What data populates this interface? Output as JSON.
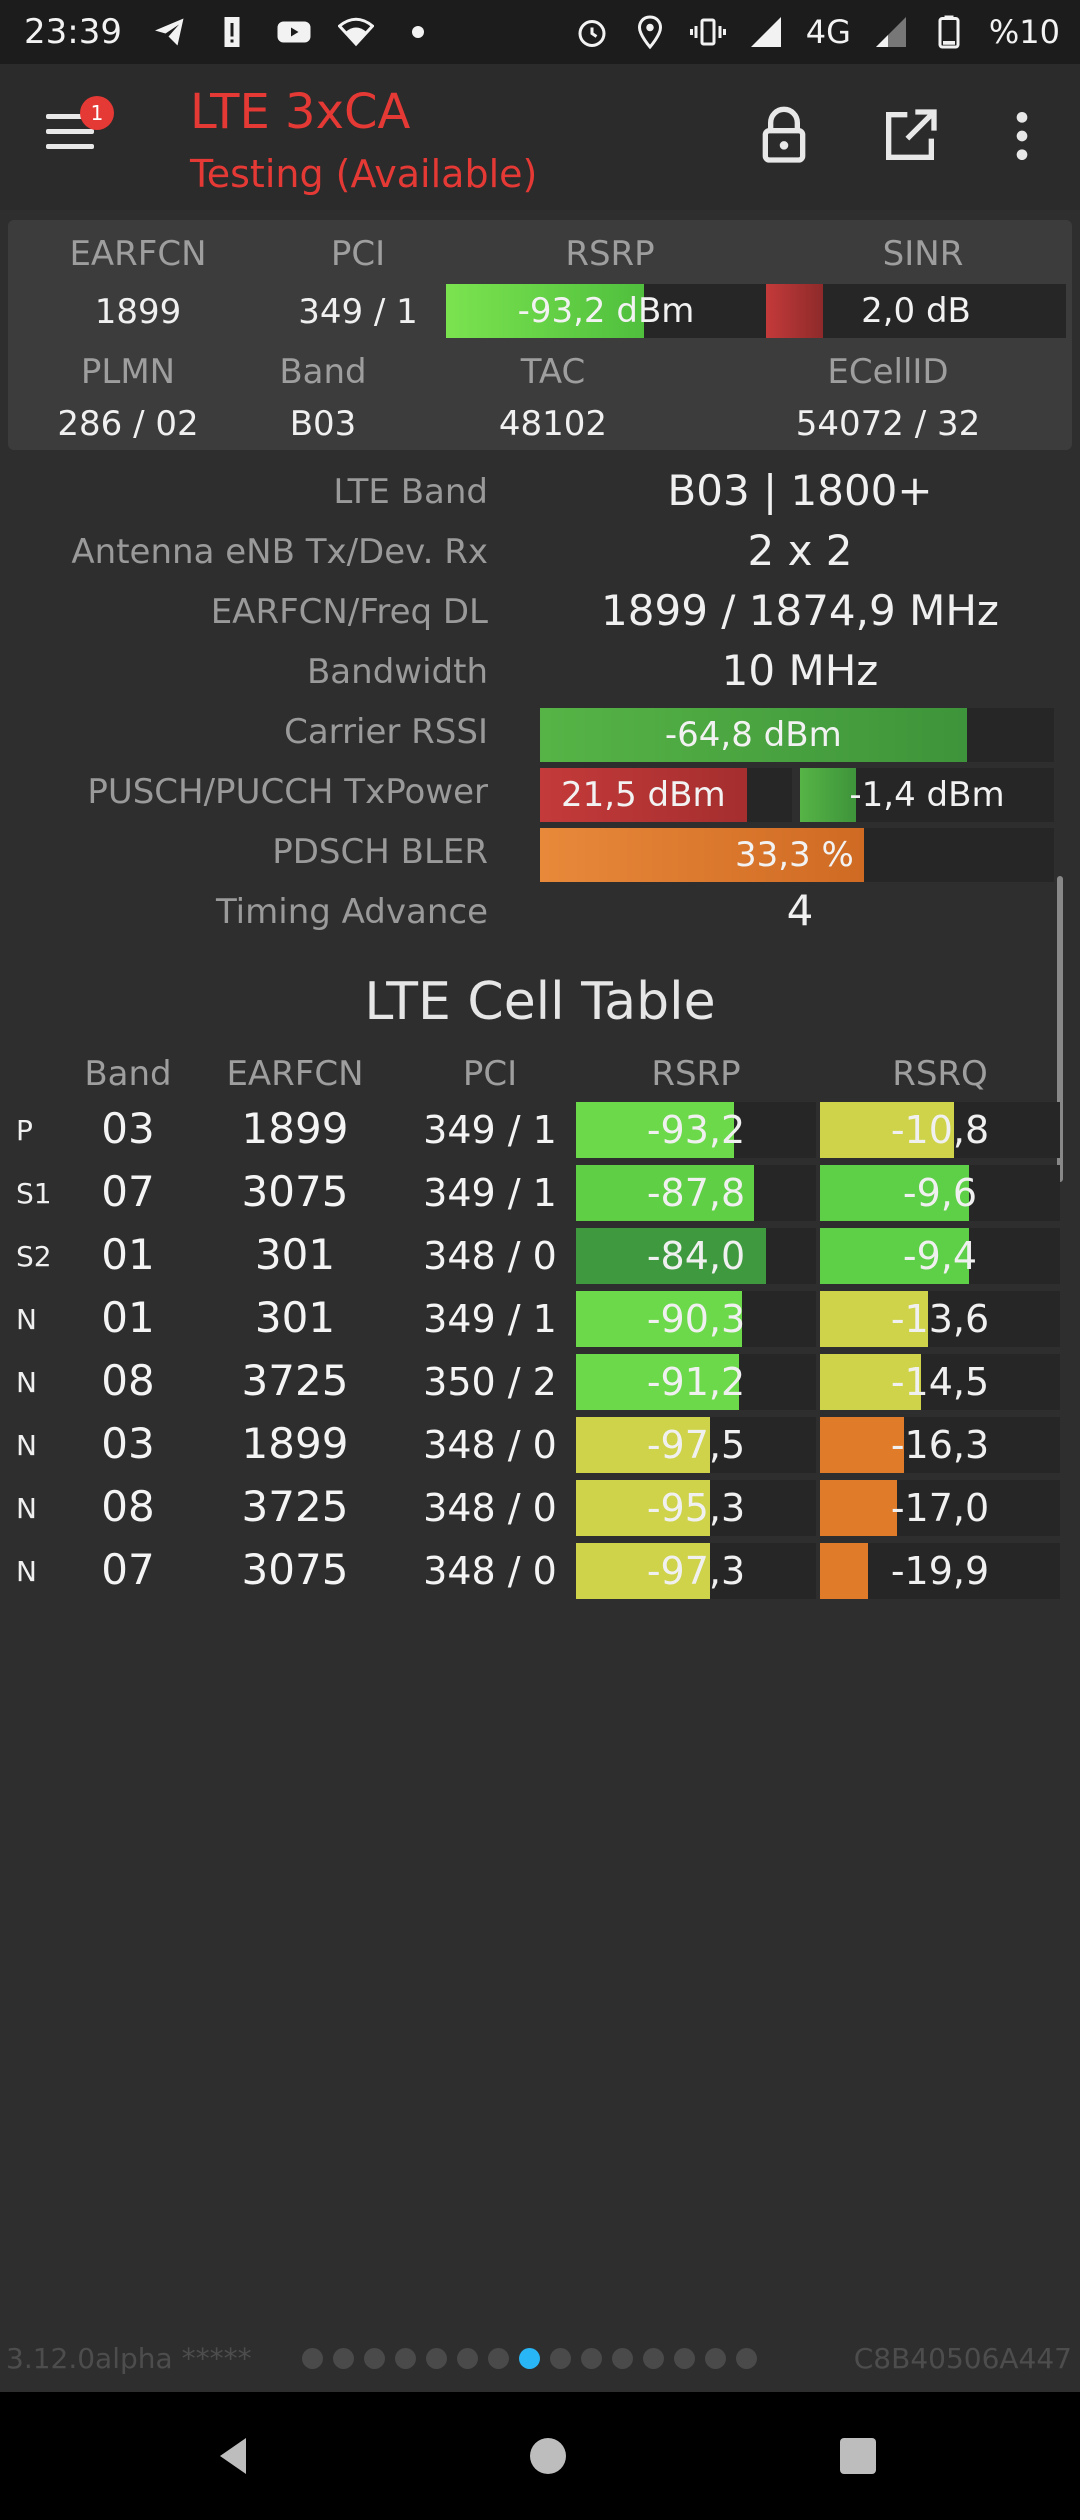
{
  "status_bar": {
    "time": "23:39",
    "network": "4G",
    "battery": "%10",
    "left_icons": [
      "telegram-icon",
      "alert-icon",
      "youtube-icon",
      "wifi-icon",
      "dot-icon"
    ],
    "right_icons": [
      "alarm-icon",
      "location-icon",
      "vibrate-icon",
      "signal-icon",
      "signal-2-icon",
      "battery-icon"
    ]
  },
  "toolbar": {
    "badge": "1",
    "title": "LTE 3xCA",
    "subtitle": "Testing (Available)"
  },
  "summary": {
    "h_earfcn": "EARFCN",
    "h_pci": "PCI",
    "h_rsrp": "RSRP",
    "h_sinr": "SINR",
    "earfcn": "1899",
    "pci": "349 / 1",
    "rsrp": "-93,2 dBm",
    "rsrp_fill": 0.62,
    "sinr": "2,0 dB",
    "sinr_fill": 0.19,
    "h_plmn": "PLMN",
    "h_band": "Band",
    "h_tac": "TAC",
    "h_ecellid": "ECellID",
    "plmn": "286 / 02",
    "band": "B03",
    "tac": "48102",
    "ecellid": "54072 / 32"
  },
  "info": {
    "lte_band_label": "LTE Band",
    "lte_band": "B03 | 1800+",
    "antenna_label": "Antenna eNB Tx/Dev. Rx",
    "antenna": "2 x 2",
    "freq_label": "EARFCN/Freq DL",
    "freq": "1899 / 1874,9 MHz",
    "bandwidth_label": "Bandwidth",
    "bandwidth": "10 MHz",
    "rssi_label": "Carrier RSSI",
    "rssi": "-64,8 dBm",
    "rssi_fill": 0.83,
    "txpower_label": "PUSCH/PUCCH TxPower",
    "pusch": "21,5 dBm",
    "pusch_fill": 0.82,
    "pucch": "-1,4 dBm",
    "pucch_fill": 0.22,
    "bler_label": "PDSCH BLER",
    "bler": "33,3 %",
    "bler_fill": 0.63,
    "ta_label": "Timing Advance",
    "ta": "4"
  },
  "cell_table": {
    "title": "LTE Cell Table",
    "headers": {
      "band": "Band",
      "earfcn": "EARFCN",
      "pci": "PCI",
      "rsrp": "RSRP",
      "rsrq": "RSRQ"
    },
    "rows": [
      {
        "tag": "P",
        "band": "03",
        "earfcn": "1899",
        "pci": "349 / 1",
        "rsrp": "-93,2",
        "rsrp_fill": 0.66,
        "rsrp_color": "#6cd94a",
        "rsrq": "-10,8",
        "rsrq_fill": 0.56,
        "rsrq_color": "#cfd34a"
      },
      {
        "tag": "S1",
        "band": "07",
        "earfcn": "3075",
        "pci": "349 / 1",
        "rsrp": "-87,8",
        "rsrp_fill": 0.74,
        "rsrp_color": "#5fcf45",
        "rsrq": "-9,6",
        "rsrq_fill": 0.62,
        "rsrq_color": "#5ed048"
      },
      {
        "tag": "S2",
        "band": "01",
        "earfcn": "301",
        "pci": "348 / 0",
        "rsrp": "-84,0",
        "rsrp_fill": 0.79,
        "rsrp_color": "#3f9a3f",
        "rsrq": "-9,4",
        "rsrq_fill": 0.62,
        "rsrq_color": "#5ed048"
      },
      {
        "tag": "N",
        "band": "01",
        "earfcn": "301",
        "pci": "349 / 1",
        "rsrp": "-90,3",
        "rsrp_fill": 0.69,
        "rsrp_color": "#6cd94a",
        "rsrq": "-13,6",
        "rsrq_fill": 0.45,
        "rsrq_color": "#cfd34a"
      },
      {
        "tag": "N",
        "band": "08",
        "earfcn": "3725",
        "pci": "350 / 2",
        "rsrp": "-91,2",
        "rsrp_fill": 0.68,
        "rsrp_color": "#6cd94a",
        "rsrq": "-14,5",
        "rsrq_fill": 0.42,
        "rsrq_color": "#cfd34a"
      },
      {
        "tag": "N",
        "band": "03",
        "earfcn": "1899",
        "pci": "348 / 0",
        "rsrp": "-97,5",
        "rsrp_fill": 0.56,
        "rsrp_color": "#cfd34a",
        "rsrq": "-16,3",
        "rsrq_fill": 0.35,
        "rsrq_color": "#e07b2a"
      },
      {
        "tag": "N",
        "band": "08",
        "earfcn": "3725",
        "pci": "348 / 0",
        "rsrp": "-95,3",
        "rsrp_fill": 0.56,
        "rsrp_color": "#cfd34a",
        "rsrq": "-17,0",
        "rsrq_fill": 0.32,
        "rsrq_color": "#e07b2a"
      },
      {
        "tag": "N",
        "band": "07",
        "earfcn": "3075",
        "pci": "348 / 0",
        "rsrp": "-97,3",
        "rsrp_fill": 0.56,
        "rsrp_color": "#cfd34a",
        "rsrq": "-19,9",
        "rsrq_fill": 0.2,
        "rsrq_color": "#e07b2a"
      }
    ]
  },
  "footer": {
    "version": "3.12.0alpha *****",
    "device_id": "C8B40506A447",
    "pages_total": 15,
    "page_active": 8
  }
}
